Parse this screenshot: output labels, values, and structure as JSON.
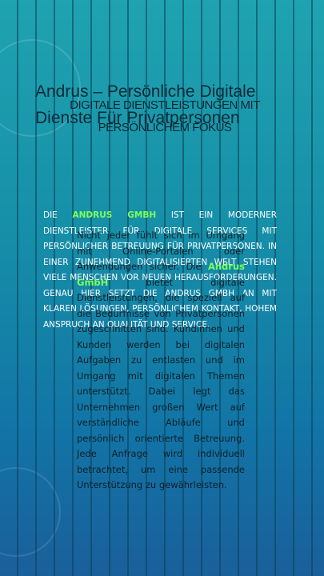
{
  "title": "Andrus – Persönliche Digitale Dienste Für Privatpersonen",
  "heading": "DIGITALE DIENSTLEISTUNGEN MIT PERSÖNLICHEM FOKUS",
  "intro": [
    "Die",
    "Andrus GmbH",
    "ist ein moderner Dienstleister für digitale Services mit persönlicher Betreuung für Privatpersonen. In einer zunehmend digitalisierten Welt stehen viele Menschen vor neuen Herausforderungen. Genau hier setzt die Andrus GmbH an mit klaren Lösungen, persönlichem Kontakt, hohem Anspruch an Qualität und Service."
  ],
  "body": [
    "Nicht jeder fühlt sich im Umgang mit Online-Portalen oder Anwendungen sicher. Die",
    "Andrus GmbH",
    "bietet digitale Dienstleistungen, die speziell auf die Bedürfnisse von Privatpersonen zugeschnitten sind. Kundinnen und Kunden werden bei digitalen Aufgaben zu entlasten und im Umgang mit digitalen Themen unterstützt. Dabei legt das Unternehmen großen Wert auf verständliche Abläufe und persönlich orientierte Betreuung. Jede Anfrage wird individuell betrachtet, um eine passende Unterstützung zu gewährleisten."
  ]
}
